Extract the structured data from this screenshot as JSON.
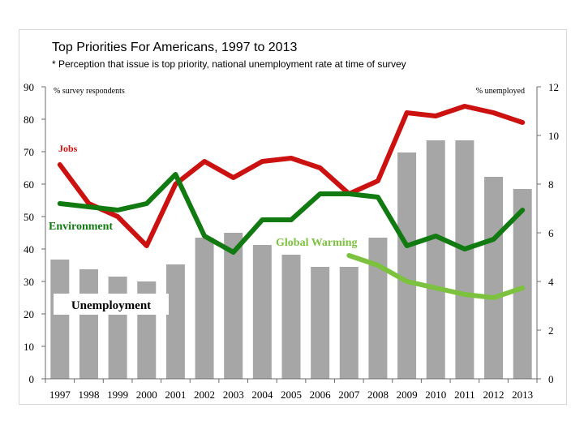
{
  "chart_data": {
    "type": "bar+line",
    "title": "Top Priorities For Americans, 1997 to 2013",
    "subtitle": "* Perception that issue is top priority, national unemployment rate at time of survey",
    "left_axis_label": "% survey respondents",
    "right_axis_label": "% unemployed",
    "left_ylim": [
      0,
      90
    ],
    "right_ylim": [
      0,
      12
    ],
    "left_ticks": [
      "0",
      "10",
      "20",
      "30",
      "40",
      "50",
      "60",
      "70",
      "80",
      "90"
    ],
    "right_ticks": [
      "0",
      "2",
      "4",
      "6",
      "8",
      "10",
      "12"
    ],
    "categories": [
      "1997",
      "1998",
      "1999",
      "2000",
      "2001",
      "2002",
      "2003",
      "2004",
      "2005",
      "2006",
      "2007",
      "2008",
      "2009",
      "2010",
      "2011",
      "2012",
      "2013"
    ],
    "bars": {
      "name": "Unemployment",
      "axis": "right",
      "values": [
        4.9,
        4.5,
        4.2,
        4.0,
        4.7,
        5.8,
        6.0,
        5.5,
        5.1,
        4.6,
        4.6,
        5.8,
        9.3,
        9.8,
        9.8,
        8.3,
        7.8
      ]
    },
    "series": [
      {
        "name": "Jobs",
        "axis": "left",
        "values": [
          66,
          54,
          50,
          41,
          60,
          67,
          62,
          67,
          68,
          65,
          57,
          61,
          82,
          81,
          84,
          82,
          79
        ]
      },
      {
        "name": "Environment",
        "axis": "left",
        "values": [
          54,
          53,
          52,
          54,
          63,
          44,
          39,
          49,
          49,
          57,
          57,
          56,
          41,
          44,
          40,
          43,
          52
        ]
      },
      {
        "name": "Global Warming",
        "axis": "left",
        "values": [
          null,
          null,
          null,
          null,
          null,
          null,
          null,
          null,
          null,
          null,
          38,
          35,
          30,
          28,
          26,
          25,
          28
        ]
      }
    ],
    "colors": {
      "bars": "#a6a6a6",
      "Jobs": "#cc1111",
      "Environment": "#117a11",
      "Global Warming": "#7cc23e",
      "axis": "#6b6b6b"
    }
  }
}
